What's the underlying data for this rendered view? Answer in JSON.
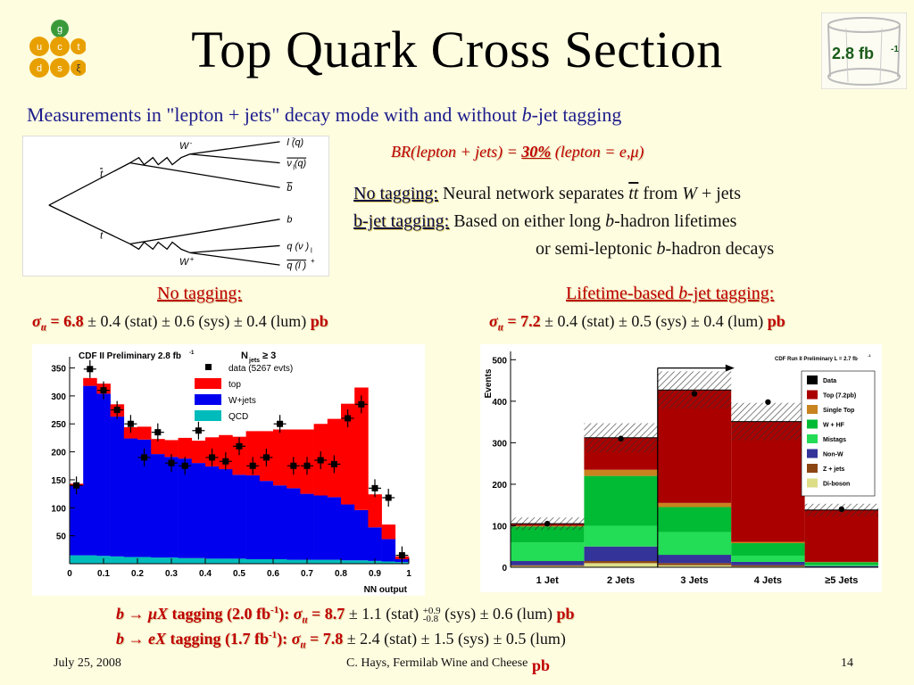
{
  "title": "Top Quark Cross Section",
  "badge": {
    "lumi": "2.8 fb",
    "sup": "-1"
  },
  "logo": {
    "letters": [
      "g",
      "u",
      "c",
      "t",
      "d",
      "s",
      "ξ"
    ]
  },
  "subtitle": {
    "pre": "Measurements in \"lepton + jets\" decay mode with and without ",
    "b": "b",
    "post": "-jet tagging"
  },
  "feynman": {
    "w_minus": "W",
    "w_minus_sup": "-",
    "w_plus": "W",
    "w_plus_sup": "+",
    "tbar": "t",
    "t": "t",
    "out1": "l  (q)",
    "out1_sup": "-",
    "out2": "ν  (q)",
    "out2_sub": "l",
    "out3": "b",
    "out4": "b",
    "out5": "q (ν )",
    "out5_sub": "l",
    "out6": "q (l )",
    "out6_sup": "+"
  },
  "br_line": {
    "pre": "BR(lepton + jets) = ",
    "val": "30%",
    "post": "   (lepton = e,μ)"
  },
  "desc": {
    "no_tag_label": "No tagging:",
    "no_tag_text_a": " Neural network separates ",
    "no_tag_tt": "tt",
    "no_tag_text_b": " from ",
    "no_tag_w": "W",
    "no_tag_text_c": " + jets",
    "b_tag_label": "b-jet tagging:",
    "b_tag_text_a": "  Based on either long ",
    "b_tag_b": "b",
    "b_tag_text_b": "-hadron lifetimes",
    "b_tag_line2_a": "or semi-leptonic ",
    "b_tag_line2_b": "b",
    "b_tag_line2_c": "-hadron decays"
  },
  "headers": {
    "left": "No tagging:",
    "right_a": "Lifetime-based ",
    "right_b": "b",
    "right_c": "-jet tagging:"
  },
  "results": {
    "left_sigma": "σ",
    "left_sub": "tt",
    "left_val": " = 6.8",
    "left_rest": " ± 0.4 (stat) ± 0.6 (sys) ± 0.4 (lum) ",
    "left_unit": "pb",
    "right_sigma": "σ",
    "right_sub": "tt",
    "right_val": " = 7.2",
    "right_rest": " ± 0.4 (stat) ± 0.5 (sys) ± 0.4 (lum) ",
    "right_unit": "pb"
  },
  "bottom": {
    "l1_a": "b → μX",
    "l1_b": " tagging (2.0 fb",
    "l1_sup": "-1",
    "l1_c": "): ",
    "l1_sigma": "σ",
    "l1_sub": "tt",
    "l1_val": " = 8.7",
    "l1_rest1": " ± 1.1 (stat) ",
    "l1_up": "+0.9",
    "l1_dn": "-0.8",
    "l1_rest2": " (sys) ± 0.6 (lum) ",
    "l1_unit": "pb",
    "l2_a": "b → eX",
    "l2_b": " tagging (1.7 fb",
    "l2_sup": "-1",
    "l2_c": "):  ",
    "l2_sigma": "σ",
    "l2_sub": "tt",
    "l2_val": " = 7.8",
    "l2_rest": " ± 2.4 (stat) ± 1.5 (sys) ± 0.5 (lum)",
    "l2_unit": "pb"
  },
  "footer": {
    "date": "July 25, 2008",
    "author": "C. Hays, Fermilab Wine and Cheese",
    "page": "14"
  },
  "chart_data": [
    {
      "type": "bar",
      "title": "CDF II Preliminary 2.8 fb",
      "title_sup": "-1",
      "annotation": "N",
      "annotation_sub": "jets",
      "annotation_post": " ≥ 3",
      "xlabel": "NN output",
      "ylabel": "",
      "xlim": [
        0,
        1
      ],
      "ylim": [
        0,
        370
      ],
      "xticks": [
        "0",
        "0.1",
        "0.2",
        "0.3",
        "0.4",
        "0.5",
        "0.6",
        "0.7",
        "0.8",
        "0.9",
        "1"
      ],
      "yticks": [
        "50",
        "100",
        "150",
        "200",
        "250",
        "300",
        "350"
      ],
      "legend": [
        "data (5267 evts)",
        "top",
        "W+jets",
        "QCD"
      ],
      "legend_colors": [
        "#000000",
        "#ff0000",
        "#0000ee",
        "#00bbbb"
      ],
      "bin_width": 0.04,
      "bin_starts": [
        0,
        0.04,
        0.08,
        0.12,
        0.16,
        0.2,
        0.24,
        0.28,
        0.32,
        0.36,
        0.4,
        0.44,
        0.48,
        0.52,
        0.56,
        0.6,
        0.64,
        0.68,
        0.72,
        0.76,
        0.8,
        0.84,
        0.88,
        0.92,
        0.96
      ],
      "series": [
        {
          "name": "QCD",
          "values": [
            15,
            15,
            14,
            13,
            12,
            12,
            11,
            11,
            10,
            10,
            9,
            9,
            9,
            8,
            8,
            8,
            7,
            7,
            7,
            7,
            6,
            6,
            5,
            4,
            3
          ]
        },
        {
          "name": "W+jets",
          "values": [
            125,
            303,
            290,
            250,
            212,
            210,
            185,
            180,
            178,
            170,
            165,
            160,
            150,
            150,
            140,
            132,
            128,
            118,
            115,
            112,
            100,
            90,
            60,
            40,
            5
          ]
        },
        {
          "name": "top",
          "values": [
            3,
            14,
            18,
            22,
            20,
            23,
            27,
            30,
            37,
            40,
            52,
            61,
            68,
            79,
            89,
            100,
            105,
            115,
            128,
            140,
            180,
            219,
            59,
            26,
            5
          ]
        }
      ],
      "data_points": [
        140,
        348,
        310,
        275,
        250,
        190,
        235,
        180,
        175,
        238,
        190,
        183,
        210,
        175,
        190,
        250,
        175,
        175,
        185,
        178,
        260,
        285,
        135,
        118,
        15
      ]
    },
    {
      "type": "bar",
      "title": "CDF Run II Preliminary L = 2.7 fb",
      "title_sup": "-1",
      "xlabel": "",
      "ylabel": "Events",
      "categories": [
        "1 Jet",
        "2 Jets",
        "3 Jets",
        "4 Jets",
        "≥5 Jets"
      ],
      "ylim": [
        0,
        520
      ],
      "yticks": [
        "0",
        "100",
        "200",
        "300",
        "400",
        "500"
      ],
      "legend": [
        "Data",
        "Top (7.2pb)",
        "Single Top",
        "W + HF",
        "Mistags",
        "Non-W",
        "Z + jets",
        "Di-boson"
      ],
      "legend_colors": [
        "#000000",
        "#aa0000",
        "#c8821e",
        "#00bb33",
        "#22dd55",
        "#333399",
        "#8b4513",
        "#dddd88"
      ],
      "series": [
        {
          "name": "Di-boson",
          "values": [
            3,
            10,
            5,
            2,
            0
          ]
        },
        {
          "name": "Z + jets",
          "values": [
            2,
            5,
            5,
            3,
            1
          ]
        },
        {
          "name": "Non-W",
          "values": [
            10,
            35,
            20,
            8,
            2
          ]
        },
        {
          "name": "Mistags",
          "values": [
            45,
            50,
            55,
            15,
            3
          ]
        },
        {
          "name": "W + HF",
          "values": [
            38,
            120,
            60,
            30,
            6
          ]
        },
        {
          "name": "Single Top",
          "values": [
            2,
            15,
            10,
            3,
            1
          ]
        },
        {
          "name": "Top (7.2pb)",
          "values": [
            5,
            77,
            272,
            290,
            125
          ]
        }
      ],
      "uncertainty": [
        15,
        35,
        45,
        45,
        15
      ],
      "data_points": [
        105,
        310,
        418,
        398,
        140
      ]
    }
  ]
}
